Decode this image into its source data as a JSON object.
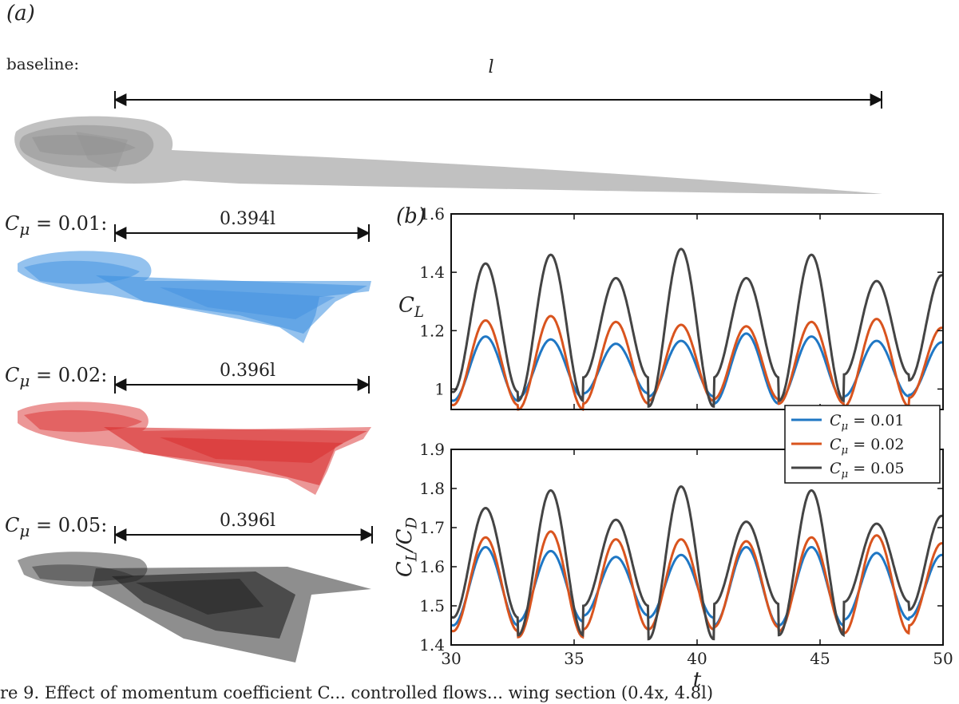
{
  "panel_a": {
    "label": "(a)",
    "baseline": {
      "label": "baseline:",
      "dimension": "l"
    },
    "cases": [
      {
        "var": "C",
        "sub": "μ",
        "value": "= 0.01:",
        "dimension": "0.394l",
        "color": "#3d8fe0"
      },
      {
        "var": "C",
        "sub": "μ",
        "value": "= 0.02:",
        "dimension": "0.396l",
        "color": "#d92f2f"
      },
      {
        "var": "C",
        "sub": "μ",
        "value": "= 0.05:",
        "dimension": "0.396l",
        "color": "#1e1e1e"
      }
    ],
    "baseline_color": "#8e8e8e"
  },
  "panel_b": {
    "label": "(b)"
  },
  "caption_fragment": "re 9. Effect of momentum coefficient C... controlled flows... wing section (0.4x, 4.8l)",
  "chart_data": [
    {
      "type": "line",
      "ylabel": "C_L",
      "xlim": [
        30,
        50
      ],
      "ylim": [
        0.93,
        1.6
      ],
      "yticks": [
        "1",
        "1.2",
        "1.4",
        "1.6"
      ],
      "ytick_values": [
        1.0,
        1.2,
        1.4,
        1.6
      ],
      "grid": false,
      "series": [
        {
          "name": "C_μ = 0.01",
          "color": "#1f77c4",
          "mean": 1.07,
          "amplitude": [
            0.11,
            0.1,
            0.085,
            0.095,
            0.12,
            0.11,
            0.095,
            0.09
          ],
          "phase": 0.0
        },
        {
          "name": "C_μ = 0.02",
          "color": "#d9541e",
          "mean": 1.09,
          "amplitude": [
            0.145,
            0.16,
            0.14,
            0.13,
            0.125,
            0.14,
            0.15,
            0.12
          ],
          "phase": 0.0
        },
        {
          "name": "C_μ = 0.05",
          "color": "#444444",
          "mean": 1.21,
          "amplitude": [
            0.22,
            0.25,
            0.17,
            0.27,
            0.17,
            0.25,
            0.16,
            0.18
          ],
          "phase": 0.0
        }
      ]
    },
    {
      "type": "line",
      "ylabel": "C_L/C_D",
      "xlabel": "t",
      "xlim": [
        30,
        50
      ],
      "ylim": [
        1.4,
        1.9
      ],
      "xticks": [
        "30",
        "35",
        "40",
        "45",
        "50"
      ],
      "xtick_values": [
        30,
        35,
        40,
        45,
        50
      ],
      "yticks": [
        "1.4",
        "1.5",
        "1.6",
        "1.7",
        "1.8",
        "1.9"
      ],
      "ytick_values": [
        1.4,
        1.5,
        1.6,
        1.7,
        1.8,
        1.9
      ],
      "grid": false,
      "series": [
        {
          "name": "C_μ = 0.01",
          "color": "#1f77c4",
          "mean": 1.55,
          "amplitude": [
            0.1,
            0.09,
            0.075,
            0.08,
            0.1,
            0.1,
            0.085,
            0.08
          ],
          "phase": 0.0
        },
        {
          "name": "C_μ = 0.02",
          "color": "#d9541e",
          "mean": 1.555,
          "amplitude": [
            0.12,
            0.135,
            0.115,
            0.115,
            0.11,
            0.12,
            0.125,
            0.105
          ],
          "phase": 0.0
        },
        {
          "name": "C_μ = 0.05",
          "color": "#444444",
          "mean": 1.61,
          "amplitude": [
            0.14,
            0.185,
            0.11,
            0.195,
            0.105,
            0.185,
            0.1,
            0.12
          ],
          "phase": 0.0
        }
      ]
    }
  ],
  "legend": {
    "placement": "between-plots-right",
    "entries": [
      {
        "text": "C_μ = 0.01",
        "color": "#1f77c4"
      },
      {
        "text": "C_μ = 0.02",
        "color": "#d9541e"
      },
      {
        "text": "C_μ = 0.05",
        "color": "#444444"
      }
    ]
  },
  "period": 2.65,
  "t0": 31.4
}
